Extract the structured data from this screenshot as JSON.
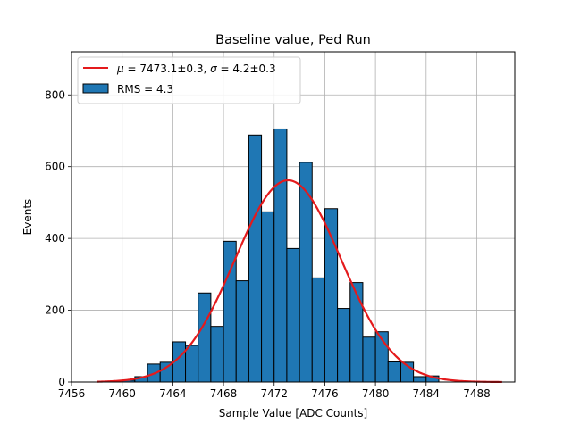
{
  "chart_data": {
    "type": "bar",
    "title": "Baseline value, Ped Run",
    "xlabel": "Sample Value [ADC Counts]",
    "ylabel": "Events",
    "xlim": [
      7456,
      7491
    ],
    "ylim": [
      0,
      920
    ],
    "xticks": [
      7456,
      7460,
      7464,
      7468,
      7472,
      7476,
      7480,
      7484,
      7488
    ],
    "yticks": [
      0,
      200,
      400,
      600,
      800
    ],
    "grid": true,
    "legend_position": "top-left",
    "histogram": {
      "name": "RMS = 4.3",
      "color": "#1f77b4",
      "edgecolor": "#000000",
      "bin_edges": [
        7460,
        7461,
        7462,
        7463,
        7464,
        7465,
        7466,
        7467,
        7468,
        7469,
        7470,
        7471,
        7472,
        7473,
        7474,
        7475,
        7476,
        7477,
        7478,
        7479,
        7480,
        7481,
        7482,
        7483,
        7484,
        7485,
        7486
      ],
      "values": [
        5,
        15,
        50,
        55,
        112,
        102,
        248,
        155,
        392,
        282,
        688,
        474,
        705,
        372,
        612,
        290,
        483,
        205,
        277,
        125,
        140,
        56,
        55,
        15,
        17,
        0
      ]
    },
    "fit": {
      "name_prefix": "μ = 7473.1±0.3, σ = 4.2±0.3",
      "label_mu": "μ",
      "label_mu_text": " = 7473.1±0.3, ",
      "label_sigma": "σ",
      "label_sigma_text": " = 4.2±0.3",
      "color": "#e41a1c",
      "mu": 7473.1,
      "sigma": 4.2,
      "amplitude": 562,
      "x_range": [
        7458,
        7490
      ]
    }
  }
}
